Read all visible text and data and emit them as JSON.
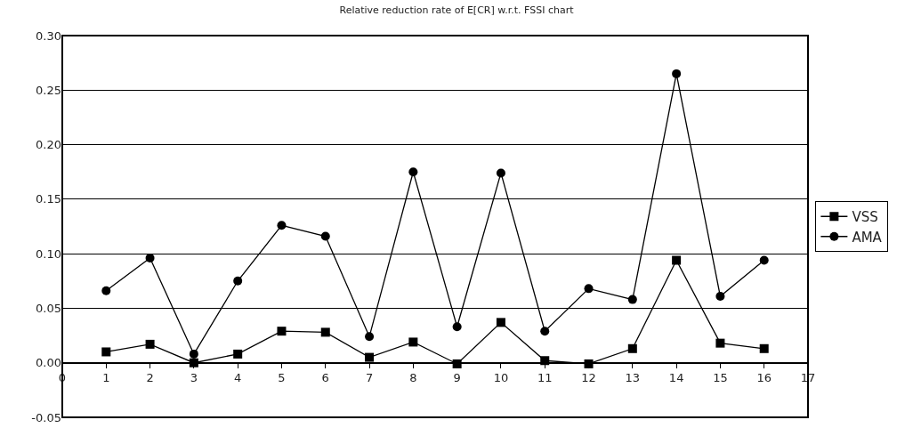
{
  "chart_data": {
    "type": "line",
    "title": "Relative reduction rate of E[CR] w.r.t. FSSI chart",
    "x": [
      1,
      2,
      3,
      4,
      5,
      6,
      7,
      8,
      9,
      10,
      11,
      12,
      13,
      14,
      15,
      16
    ],
    "series": [
      {
        "name": "VSS",
        "color": "#000000",
        "marker": "square",
        "values": [
          0.01,
          0.017,
          0.0,
          0.008,
          0.029,
          0.028,
          0.005,
          0.019,
          -0.001,
          0.037,
          0.002,
          -0.001,
          0.013,
          0.094,
          0.018,
          0.013
        ]
      },
      {
        "name": "AMA",
        "color": "#000000",
        "marker": "circle",
        "values": [
          0.066,
          0.096,
          0.008,
          0.075,
          0.126,
          0.116,
          0.024,
          0.175,
          0.033,
          0.174,
          0.029,
          0.068,
          0.058,
          0.265,
          0.061,
          0.094
        ]
      }
    ],
    "xlim": [
      0,
      17
    ],
    "xticks": [
      0,
      1,
      2,
      3,
      4,
      5,
      6,
      7,
      8,
      9,
      10,
      11,
      12,
      13,
      14,
      15,
      16,
      17
    ],
    "ylim": [
      -0.05,
      0.3
    ],
    "yticks": [
      {
        "value": -0.05,
        "label": "-0.05"
      },
      {
        "value": 0.0,
        "label": "0.00"
      },
      {
        "value": 0.05,
        "label": "0.05"
      },
      {
        "value": 0.1,
        "label": "0.10"
      },
      {
        "value": 0.15,
        "label": "0.15"
      },
      {
        "value": 0.2,
        "label": "0.20"
      },
      {
        "value": 0.25,
        "label": "0.25"
      },
      {
        "value": 0.3,
        "label": "0.30"
      }
    ],
    "grid": "y",
    "legend": "right",
    "line_style": "solid"
  }
}
